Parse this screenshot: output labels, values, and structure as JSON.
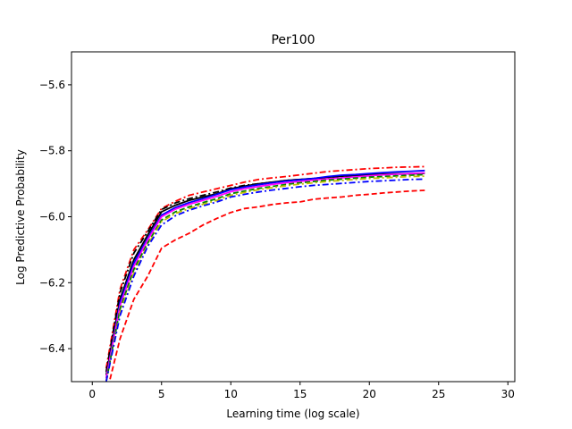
{
  "chart_data": {
    "type": "line",
    "title": "Per100",
    "xlabel": "Learning time (log scale)",
    "ylabel": "Log Predictive Probability",
    "xlim": [
      -1.5,
      30.5
    ],
    "ylim": [
      -6.5,
      -5.5
    ],
    "xticks": [
      0,
      5,
      10,
      15,
      20,
      25,
      30
    ],
    "yticks": [
      -6.4,
      -6.2,
      -6.0,
      -5.8,
      -5.6
    ],
    "xtick_labels": [
      "0",
      "5",
      "10",
      "15",
      "20",
      "25",
      "30"
    ],
    "ytick_labels": [
      "−6.4",
      "−6.2",
      "−6.0",
      "−5.8",
      "−5.6"
    ],
    "grid": false,
    "x": [
      1,
      2,
      3,
      4,
      5,
      6,
      7,
      8,
      9,
      10,
      11,
      12,
      13,
      14,
      15,
      16,
      17,
      18,
      19,
      20,
      21,
      22,
      23,
      24
    ],
    "series": [
      {
        "color": "#ff0000",
        "linestyle": "dashdot",
        "values": [
          -6.46,
          -6.22,
          -6.1,
          -6.04,
          -5.975,
          -5.953,
          -5.935,
          -5.925,
          -5.915,
          -5.905,
          -5.895,
          -5.887,
          -5.882,
          -5.878,
          -5.873,
          -5.868,
          -5.863,
          -5.86,
          -5.857,
          -5.854,
          -5.852,
          -5.85,
          -5.849,
          -5.848
        ]
      },
      {
        "color": "#000000",
        "linestyle": "dashdot",
        "values": [
          -6.47,
          -6.23,
          -6.11,
          -6.045,
          -5.978,
          -5.958,
          -5.945,
          -5.935,
          -5.925,
          -5.913,
          -5.905,
          -5.9,
          -5.895,
          -5.89,
          -5.887,
          -5.884,
          -5.881,
          -5.878,
          -5.876,
          -5.874,
          -5.872,
          -5.871,
          -5.87,
          -5.869
        ]
      },
      {
        "color": "#000000",
        "linestyle": "solid",
        "values": [
          -6.48,
          -6.25,
          -6.13,
          -6.055,
          -5.985,
          -5.965,
          -5.95,
          -5.94,
          -5.93,
          -5.915,
          -5.907,
          -5.9,
          -5.895,
          -5.89,
          -5.887,
          -5.884,
          -5.88,
          -5.877,
          -5.875,
          -5.873,
          -5.871,
          -5.87,
          -5.869,
          -5.868
        ]
      },
      {
        "color": "#0000ff",
        "linestyle": "solid",
        "values": [
          -6.49,
          -6.26,
          -6.14,
          -6.065,
          -5.995,
          -5.972,
          -5.957,
          -5.945,
          -5.932,
          -5.918,
          -5.91,
          -5.903,
          -5.897,
          -5.892,
          -5.888,
          -5.884,
          -5.878,
          -5.874,
          -5.872,
          -5.869,
          -5.866,
          -5.864,
          -5.862,
          -5.86
        ]
      },
      {
        "color": "#ff00ff",
        "linestyle": "solid",
        "values": [
          -6.49,
          -6.27,
          -6.15,
          -6.07,
          -6.0,
          -5.977,
          -5.962,
          -5.95,
          -5.938,
          -5.924,
          -5.915,
          -5.908,
          -5.902,
          -5.897,
          -5.893,
          -5.889,
          -5.885,
          -5.882,
          -5.879,
          -5.876,
          -5.873,
          -5.871,
          -5.869,
          -5.867
        ]
      },
      {
        "color": "#008000",
        "linestyle": "dashed",
        "values": [
          -6.5,
          -6.28,
          -6.16,
          -6.08,
          -6.01,
          -5.985,
          -5.97,
          -5.957,
          -5.945,
          -5.93,
          -5.922,
          -5.914,
          -5.908,
          -5.902,
          -5.897,
          -5.893,
          -5.889,
          -5.886,
          -5.883,
          -5.88,
          -5.878,
          -5.876,
          -5.874,
          -5.872
        ]
      },
      {
        "color": "#bfbf00",
        "linestyle": "dashdot",
        "values": [
          -6.5,
          -6.29,
          -6.17,
          -6.085,
          -6.015,
          -5.99,
          -5.975,
          -5.962,
          -5.95,
          -5.935,
          -5.926,
          -5.918,
          -5.912,
          -5.906,
          -5.901,
          -5.897,
          -5.893,
          -5.89,
          -5.887,
          -5.884,
          -5.882,
          -5.88,
          -5.878,
          -5.877
        ]
      },
      {
        "color": "#0000ff",
        "linestyle": "dashdot",
        "values": [
          -6.5,
          -6.3,
          -6.18,
          -6.09,
          -6.025,
          -5.997,
          -5.98,
          -5.967,
          -5.955,
          -5.94,
          -5.932,
          -5.925,
          -5.919,
          -5.914,
          -5.909,
          -5.905,
          -5.902,
          -5.899,
          -5.896,
          -5.893,
          -5.891,
          -5.889,
          -5.887,
          -5.886
        ]
      },
      {
        "color": "#ff0000",
        "linestyle": "dashed",
        "values": [
          -6.54,
          -6.37,
          -6.25,
          -6.18,
          -6.095,
          -6.07,
          -6.05,
          -6.025,
          -6.005,
          -5.987,
          -5.975,
          -5.97,
          -5.963,
          -5.958,
          -5.955,
          -5.947,
          -5.943,
          -5.94,
          -5.935,
          -5.932,
          -5.928,
          -5.925,
          -5.922,
          -5.92
        ]
      }
    ]
  }
}
